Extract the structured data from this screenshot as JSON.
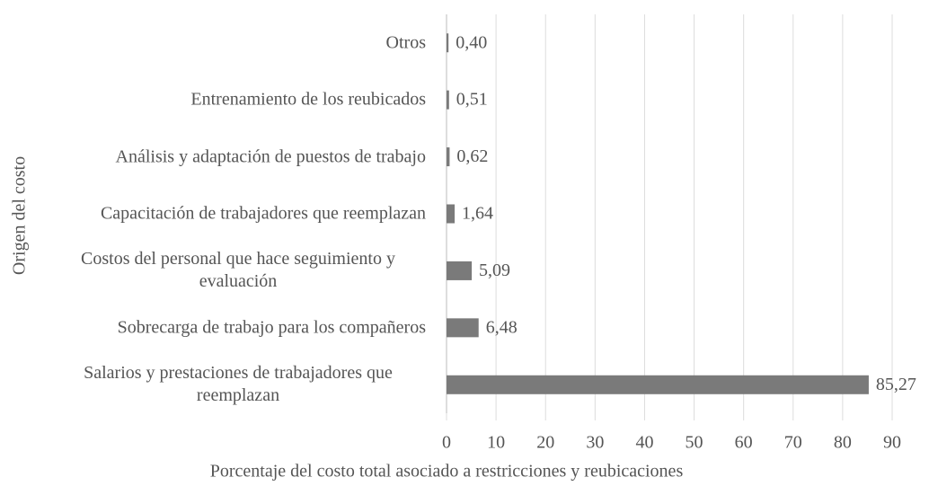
{
  "chart_data": {
    "type": "barh",
    "categories": [
      "Otros",
      "Entrenamiento de los reubicados",
      "Análisis y adaptación de puestos de trabajo",
      "Capacitación de trabajadores que reemplazan",
      "Costos del personal que hace seguimiento y evaluación",
      "Sobrecarga de trabajo para los compañeros",
      "Salarios y prestaciones de trabajadores que reemplazan"
    ],
    "values": [
      0.4,
      0.51,
      0.62,
      1.64,
      5.09,
      6.48,
      85.27
    ],
    "value_labels": [
      "0,40",
      "0,51",
      "0,62",
      "1,64",
      "5,09",
      "6,48",
      "85,27"
    ],
    "color": "#7a7a7a",
    "xlim": [
      0,
      90
    ],
    "xticks": [
      0,
      10,
      20,
      30,
      40,
      50,
      60,
      70,
      80,
      90
    ],
    "grid": true,
    "x_label": "Porcentaje del costo total asociado a restricciones y reubicaciones",
    "y_label": "Origen del costo"
  }
}
